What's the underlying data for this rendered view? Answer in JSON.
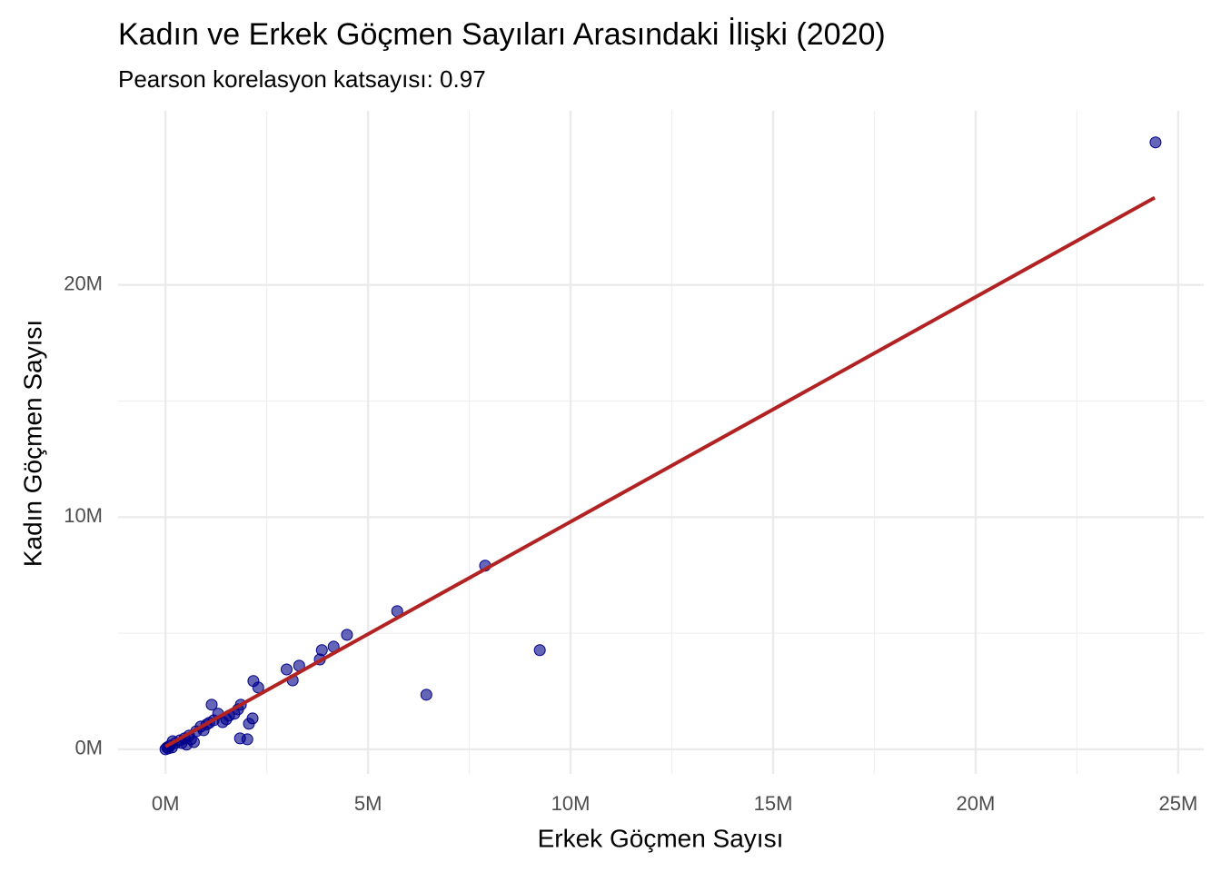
{
  "chart_data": {
    "type": "scatter",
    "title": "Kadın ve Erkek Göçmen Sayıları Arasındaki İlişki (2020)",
    "subtitle": "Pearson korelasyon katsayısı: 0.97",
    "x_label": "Erkek Göçmen Sayısı",
    "y_label": "Kadın Göçmen Sayısı",
    "color": "#00008b",
    "x": [
      24440000,
      7890000,
      9240000,
      5720000,
      6440000,
      4480000,
      4150000,
      3860000,
      3810000,
      3300000,
      2990000,
      3140000,
      2170000,
      2290000,
      2150000,
      2060000,
      2020000,
      1840000,
      1860000,
      1790000,
      1700000,
      1570000,
      1140000,
      1300000,
      1410000,
      1190000,
      1010000,
      870000,
      760000,
      700000,
      580000,
      470000,
      360000,
      250000,
      180000,
      110000,
      40000,
      0,
      70000,
      160000,
      400000,
      630000,
      940000,
      1080000,
      1500000,
      520000
    ],
    "y": [
      26140000,
      7910000,
      4270000,
      5950000,
      2350000,
      4930000,
      4420000,
      4270000,
      3870000,
      3600000,
      3440000,
      2970000,
      2940000,
      2660000,
      1330000,
      1100000,
      430000,
      470000,
      1920000,
      1720000,
      1530000,
      1450000,
      1920000,
      1530000,
      1170000,
      1250000,
      1060000,
      980000,
      780000,
      310000,
      590000,
      470000,
      390000,
      270000,
      350000,
      160000,
      80000,
      0,
      40000,
      80000,
      270000,
      430000,
      820000,
      1140000,
      1290000,
      200000
    ],
    "trend": {
      "x": [
        0,
        24420000
      ],
      "y": [
        120000,
        23760000
      ],
      "color": "#b22222"
    },
    "xlim": [
      -1170000,
      25630000
    ],
    "ylim": [
      -1060000,
      27500000
    ],
    "xticks": [
      {
        "value": 0,
        "label": "0M"
      },
      {
        "value": 5000000,
        "label": "5M"
      },
      {
        "value": 10000000,
        "label": "10M"
      },
      {
        "value": 15000000,
        "label": "15M"
      },
      {
        "value": 20000000,
        "label": "20M"
      },
      {
        "value": 25000000,
        "label": "25M"
      }
    ],
    "yticks": [
      {
        "value": 0,
        "label": "0M"
      },
      {
        "value": 10000000,
        "label": "10M"
      },
      {
        "value": 20000000,
        "label": "20M"
      }
    ],
    "grid": true
  }
}
